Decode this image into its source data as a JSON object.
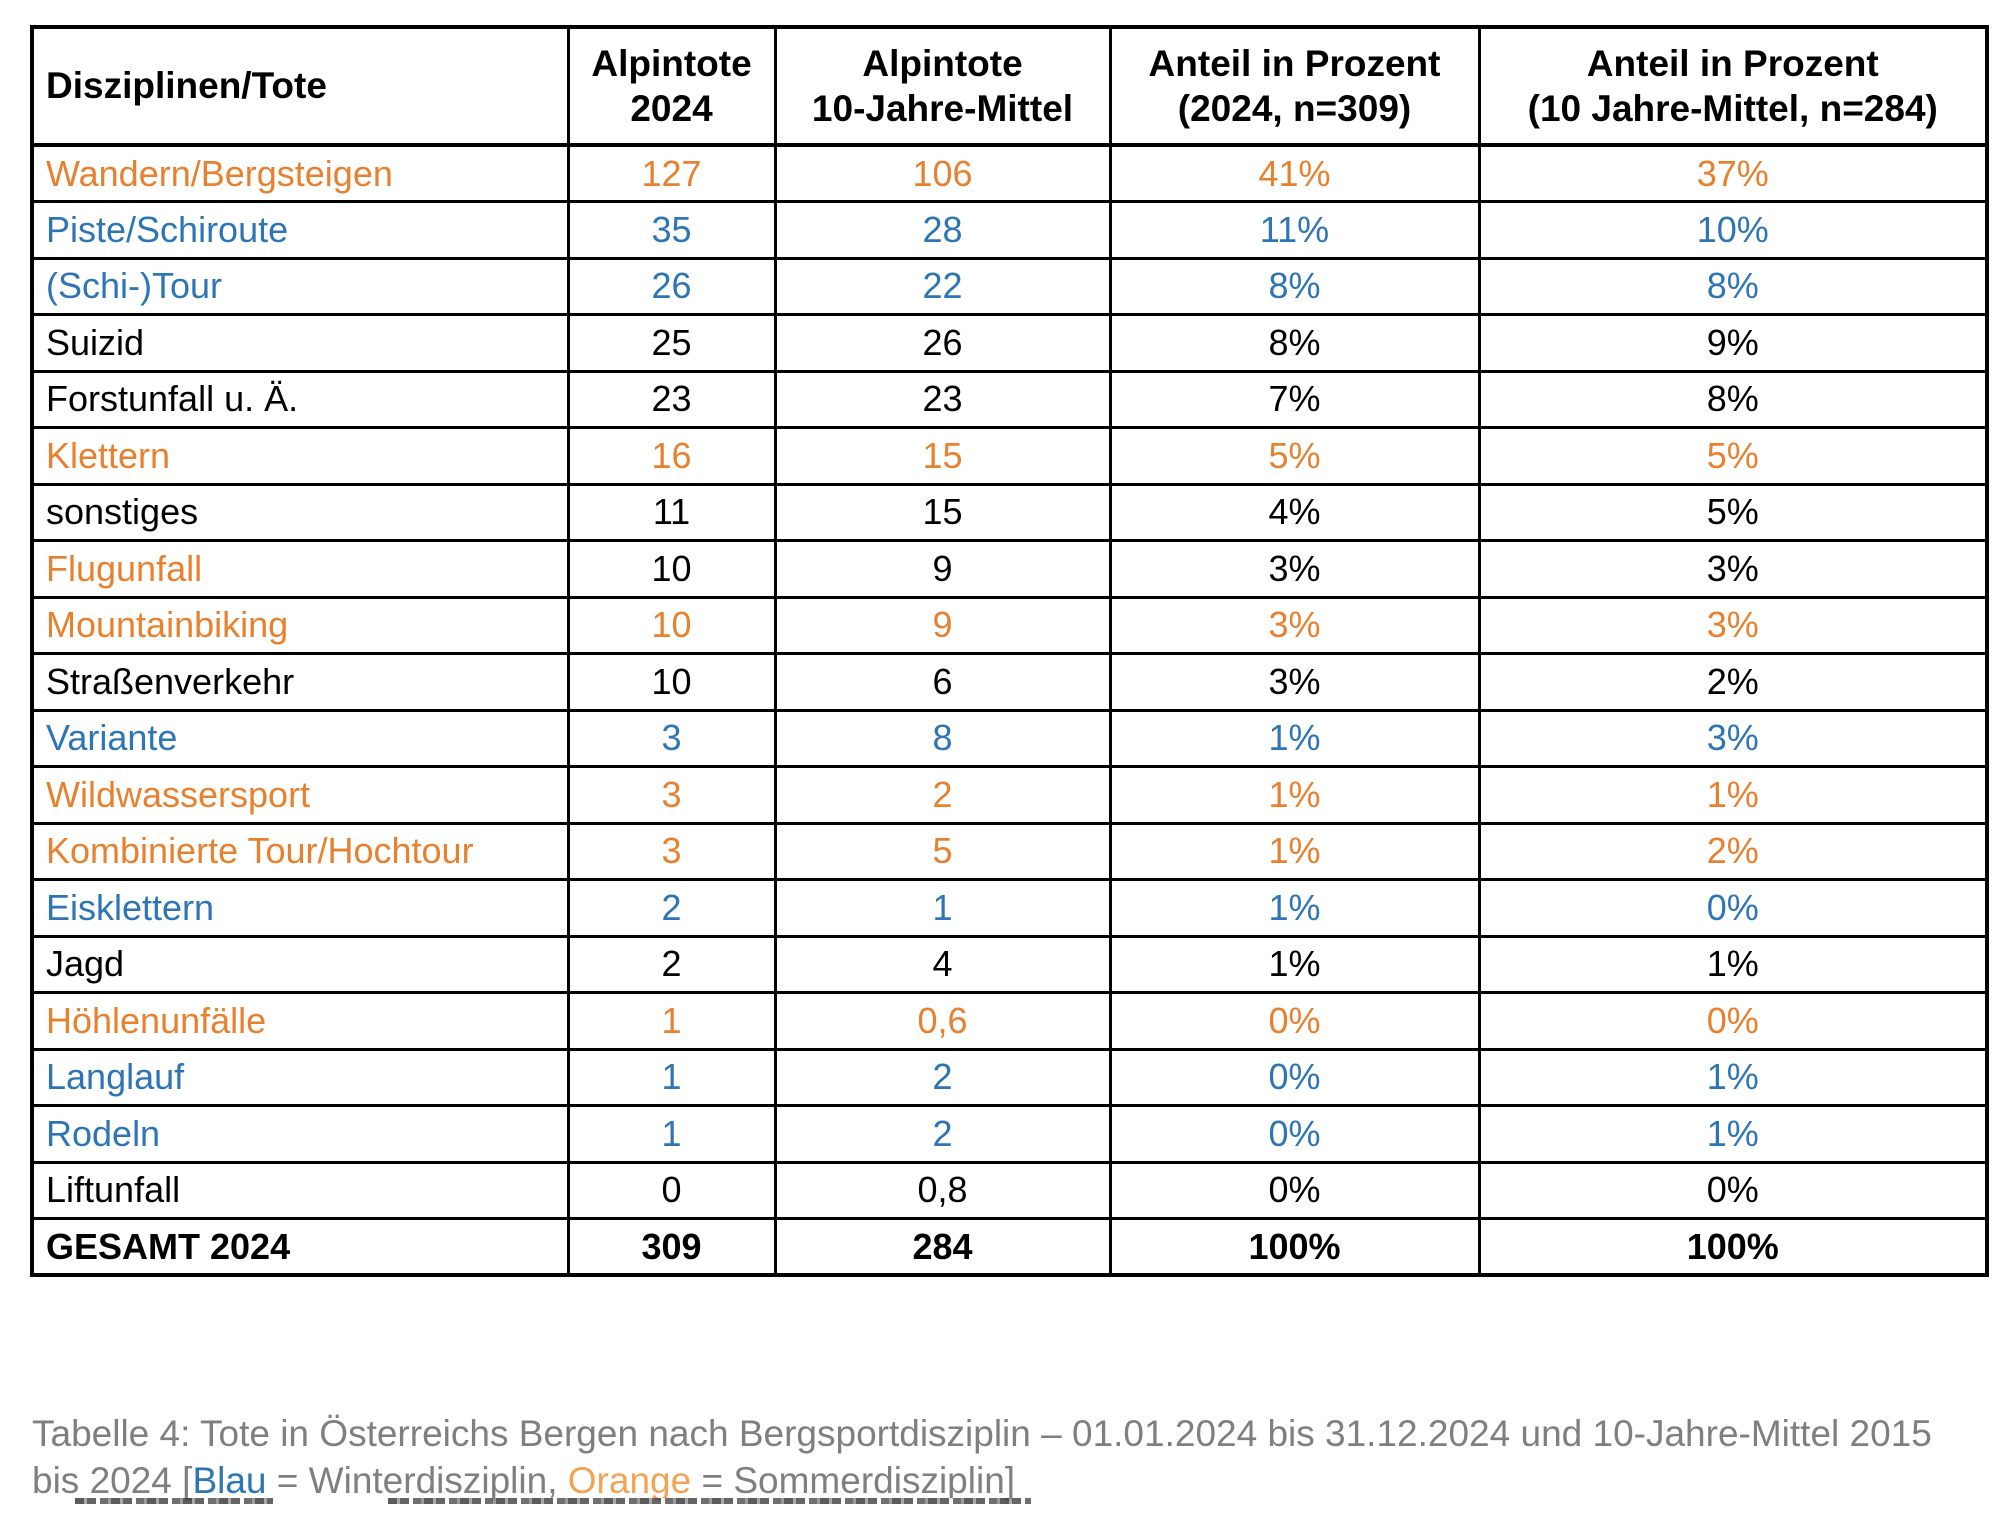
{
  "colors": {
    "black": "#000000",
    "orange": "#E8812F",
    "blue": "#2E75B6",
    "caption_gray": "#7F7F7F",
    "caption_orange": "#F2A354"
  },
  "table": {
    "headers": [
      "Disziplinen/Tote",
      "Alpintote\n2024",
      "Alpintote\n10-Jahre-Mittel",
      "Anteil in Prozent\n(2024, n=309)",
      "Anteil in Prozent\n(10 Jahre-Mittel, n=284)"
    ],
    "rows": [
      {
        "label": "Wandern/Bergsteigen",
        "color": "orange",
        "values": [
          "127",
          "106",
          "41%",
          "37%"
        ]
      },
      {
        "label": "Piste/Schiroute",
        "color": "blue",
        "values": [
          "35",
          "28",
          "11%",
          "10%"
        ]
      },
      {
        "label": "(Schi-)Tour",
        "color": "blue",
        "values": [
          "26",
          "22",
          "8%",
          "8%"
        ]
      },
      {
        "label": "Suizid",
        "color": "black",
        "values": [
          "25",
          "26",
          "8%",
          "9%"
        ]
      },
      {
        "label": "Forstunfall u. Ä.",
        "color": "black",
        "values": [
          "23",
          "23",
          "7%",
          "8%"
        ]
      },
      {
        "label": "Klettern",
        "color": "orange",
        "values": [
          "16",
          "15",
          "5%",
          "5%"
        ]
      },
      {
        "label": "sonstiges",
        "color": "black",
        "values": [
          "11",
          "15",
          "4%",
          "5%"
        ]
      },
      {
        "label": "Flugunfall",
        "color": "orange",
        "values_color": "black",
        "values": [
          "10",
          "9",
          "3%",
          "3%"
        ]
      },
      {
        "label": "Mountainbiking",
        "color": "orange",
        "values": [
          "10",
          "9",
          "3%",
          "3%"
        ]
      },
      {
        "label": "Straßenverkehr",
        "color": "black",
        "values": [
          "10",
          "6",
          "3%",
          "2%"
        ]
      },
      {
        "label": "Variante",
        "color": "blue",
        "values": [
          "3",
          "8",
          "1%",
          "3%"
        ]
      },
      {
        "label": "Wildwassersport",
        "color": "orange",
        "values": [
          "3",
          "2",
          "1%",
          "1%"
        ]
      },
      {
        "label": "Kombinierte Tour/Hochtour",
        "color": "orange",
        "values": [
          "3",
          "5",
          "1%",
          "2%"
        ]
      },
      {
        "label": "Eisklettern",
        "color": "blue",
        "values": [
          "2",
          "1",
          "1%",
          "0%"
        ]
      },
      {
        "label": "Jagd",
        "color": "black",
        "values": [
          "2",
          "4",
          "1%",
          "1%"
        ]
      },
      {
        "label": "Höhlenunfälle",
        "color": "orange",
        "values": [
          "1",
          "0,6",
          "0%",
          "0%"
        ]
      },
      {
        "label": "Langlauf",
        "color": "blue",
        "values": [
          "1",
          "2",
          "0%",
          "1%"
        ]
      },
      {
        "label": "Rodeln",
        "color": "blue",
        "values": [
          "1",
          "2",
          "0%",
          "1%"
        ]
      },
      {
        "label": "Liftunfall",
        "color": "black",
        "values": [
          "0",
          "0,8",
          "0%",
          "0%"
        ]
      },
      {
        "label": "GESAMT 2024",
        "color": "black",
        "bold": true,
        "values": [
          "309",
          "284",
          "100%",
          "100%"
        ]
      }
    ]
  },
  "caption": {
    "lines": [
      {
        "segments": [
          {
            "text": "Tabelle 4: Tote in Österreichs Bergen nach Bergsportdisziplin – 01.01.2024 bis 31.12.2024 und 10-Jahre-Mittel 2015",
            "color": "caption_gray"
          }
        ]
      },
      {
        "segments": [
          {
            "text": "bis 2024 [",
            "color": "caption_gray"
          },
          {
            "text": "Blau",
            "color": "blue"
          },
          {
            "text": " = Winterdisziplin, ",
            "color": "caption_gray"
          },
          {
            "text": "Orange",
            "color": "caption_orange"
          },
          {
            "text": " = Sommerdisziplin]",
            "color": "caption_gray"
          }
        ]
      }
    ]
  }
}
